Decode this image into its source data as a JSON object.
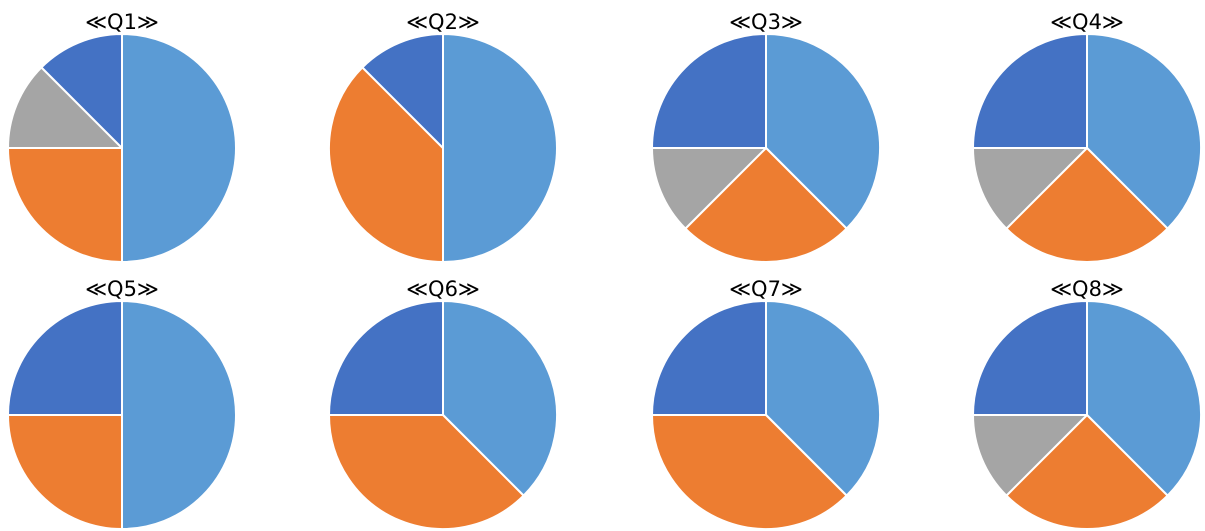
{
  "colors": {
    "blue_light": "#5b9bd5",
    "orange": "#ed7d31",
    "gray": "#a5a5a5",
    "blue_dark": "#4472c4"
  },
  "chart_data": [
    {
      "type": "pie",
      "title": "≪Q1≫",
      "values": [
        4,
        2,
        1,
        1
      ],
      "colors": [
        "#5b9bd5",
        "#ed7d31",
        "#a5a5a5",
        "#4472c4"
      ]
    },
    {
      "type": "pie",
      "title": "≪Q2≫",
      "values": [
        4,
        3,
        1
      ],
      "colors": [
        "#5b9bd5",
        "#ed7d31",
        "#4472c4"
      ]
    },
    {
      "type": "pie",
      "title": "≪Q3≫",
      "values": [
        3,
        2,
        1,
        2
      ],
      "colors": [
        "#5b9bd5",
        "#ed7d31",
        "#a5a5a5",
        "#4472c4"
      ]
    },
    {
      "type": "pie",
      "title": "≪Q4≫",
      "values": [
        3,
        2,
        1,
        2
      ],
      "colors": [
        "#5b9bd5",
        "#ed7d31",
        "#a5a5a5",
        "#4472c4"
      ]
    },
    {
      "type": "pie",
      "title": "≪Q5≫",
      "values": [
        2,
        1,
        1
      ],
      "colors": [
        "#5b9bd5",
        "#ed7d31",
        "#4472c4"
      ]
    },
    {
      "type": "pie",
      "title": "≪Q6≫",
      "values": [
        3,
        3,
        2
      ],
      "colors": [
        "#5b9bd5",
        "#ed7d31",
        "#4472c4"
      ]
    },
    {
      "type": "pie",
      "title": "≪Q7≫",
      "values": [
        3,
        3,
        2
      ],
      "colors": [
        "#5b9bd5",
        "#ed7d31",
        "#4472c4"
      ]
    },
    {
      "type": "pie",
      "title": "≪Q8≫",
      "values": [
        3,
        2,
        1,
        2
      ],
      "colors": [
        "#5b9bd5",
        "#ed7d31",
        "#a5a5a5",
        "#4472c4"
      ]
    }
  ]
}
